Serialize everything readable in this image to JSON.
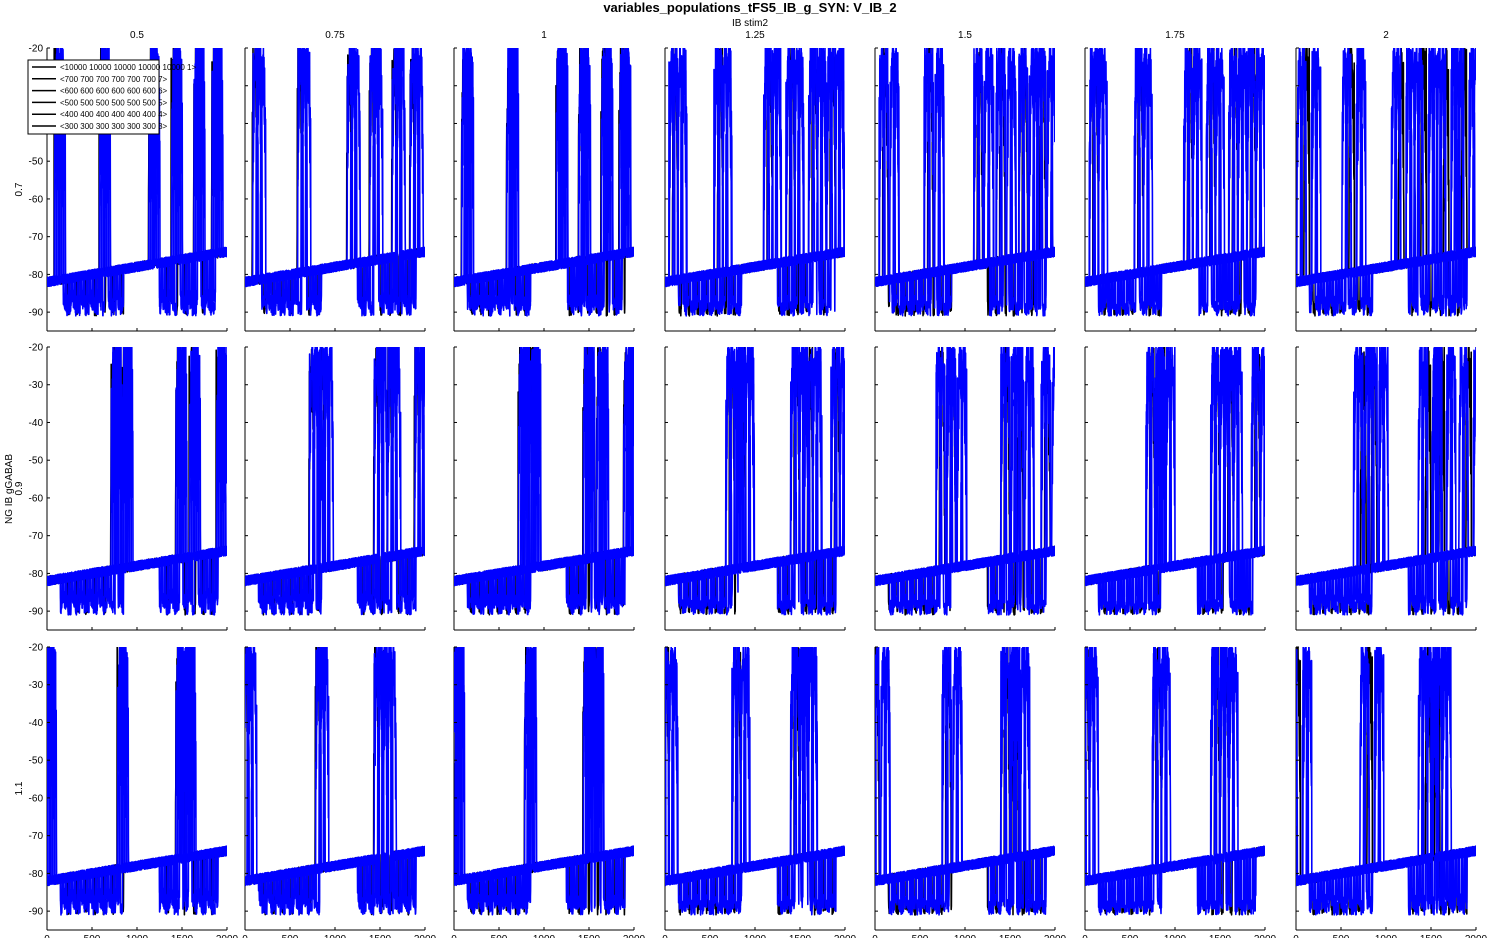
{
  "chart_data": {
    "type": "line",
    "title": "variables_populations_tFS5_IB_g_SYN: V_IB_2",
    "column_axis_label": "IB stim2",
    "row_axis_label": "NG IB gGABAB",
    "column_values": [
      "0.5",
      "0.75",
      "1",
      "1.25",
      "1.5",
      "1.75",
      "2"
    ],
    "row_values": [
      "0.7",
      "0.9",
      "1.1"
    ],
    "xlim": [
      0,
      2000
    ],
    "ylim": [
      -95,
      -20
    ],
    "xticks": [
      "0",
      "500",
      "1000",
      "1500",
      "2000"
    ],
    "yticks": [
      "-20",
      "-30",
      "-40",
      "-50",
      "-60",
      "-70",
      "-80",
      "-90"
    ],
    "legend": [
      "<10000 10000 10000 10000 10000 1>",
      "<700 700 700 700 700 700 7>",
      "<600 600 600 600 600 600 6>",
      "<500 500 500 500 500 500 5>",
      "<400 400 400 400 400 400 4>",
      "<300 300 300 300 300 300 3>"
    ],
    "series_colors": {
      "first_trace": "#000000",
      "other_traces": "#0000ff"
    },
    "trace_model": {
      "baseline_start_mV": -82,
      "baseline_end_mV": -74,
      "spike_peak_mV": -20,
      "trough_mV": -91,
      "early_burst_times_ms": [
        200,
        300,
        400,
        500,
        600,
        700,
        800
      ],
      "bursts_per_row": [
        {
          "row": "0.7",
          "burst_times_ms": [
            150,
            650,
            1200,
            1450,
            1700,
            1900
          ]
        },
        {
          "row": "0.9",
          "burst_times_ms": [
            780,
            900,
            1500,
            1650,
            1950
          ]
        },
        {
          "row": "1.1",
          "burst_times_ms": [
            50,
            850,
            1500,
            1600
          ]
        }
      ]
    }
  }
}
